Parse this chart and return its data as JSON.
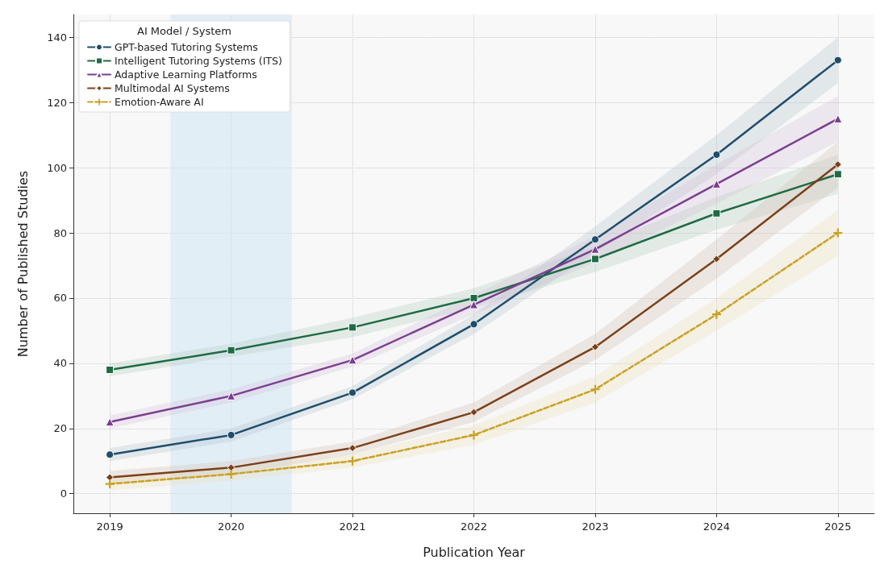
{
  "chart_data": {
    "type": "line",
    "xlabel": "Publication Year",
    "ylabel": "Number of Published Studies",
    "legend_title": "AI Model / System",
    "x": [
      2019,
      2020,
      2021,
      2022,
      2023,
      2024,
      2025
    ],
    "xlim": [
      2018.7,
      2025.3
    ],
    "xticks": [
      2019,
      2020,
      2021,
      2022,
      2023,
      2024,
      2025
    ],
    "ylim": [
      -6,
      147
    ],
    "yticks": [
      0,
      20,
      40,
      60,
      80,
      100,
      120,
      140
    ],
    "grid": true,
    "legend": "top left",
    "bands": [
      {
        "axis": "x",
        "from": 2019.5,
        "to": 2020.5,
        "color": "#d4e8f5"
      }
    ],
    "series": [
      {
        "name": "GPT-based Tutoring Systems",
        "color": "#1f4e6b",
        "marker": "circle",
        "line_style": "solid",
        "values": [
          12,
          18,
          31,
          52,
          78,
          104,
          133
        ],
        "lower": [
          10,
          16,
          29,
          49,
          74,
          98,
          126
        ],
        "upper": [
          14,
          20,
          33,
          55,
          82,
          110,
          140
        ]
      },
      {
        "name": "Intelligent Tutoring Systems (ITS)",
        "color": "#1e6b45",
        "marker": "square",
        "line_style": "solid",
        "values": [
          38,
          44,
          51,
          60,
          72,
          86,
          98
        ],
        "lower": [
          36,
          42,
          48,
          57,
          68,
          81,
          92
        ],
        "upper": [
          40,
          46,
          54,
          63,
          76,
          91,
          104
        ]
      },
      {
        "name": "Adaptive Learning Platforms",
        "color": "#7b3f8f",
        "marker": "triangle",
        "line_style": "solid",
        "values": [
          22,
          30,
          41,
          58,
          75,
          95,
          115
        ],
        "lower": [
          20,
          28,
          39,
          55,
          71,
          89,
          108
        ],
        "upper": [
          24,
          32,
          43,
          61,
          79,
          101,
          122
        ]
      },
      {
        "name": "Multimodal AI Systems",
        "color": "#7b4019",
        "marker": "diamond",
        "line_style": "solid",
        "values": [
          5,
          8,
          14,
          25,
          45,
          72,
          101
        ],
        "lower": [
          3,
          6,
          12,
          22,
          41,
          66,
          94
        ],
        "upper": [
          7,
          10,
          16,
          28,
          49,
          78,
          108
        ]
      },
      {
        "name": "Emotion-Aware AI",
        "color": "#c9a227",
        "marker": "cross",
        "line_style": "dashed",
        "values": [
          3,
          6,
          10,
          18,
          32,
          55,
          80
        ],
        "lower": [
          1,
          4,
          8,
          15,
          28,
          50,
          73
        ],
        "upper": [
          5,
          8,
          12,
          21,
          36,
          60,
          87
        ]
      }
    ]
  }
}
